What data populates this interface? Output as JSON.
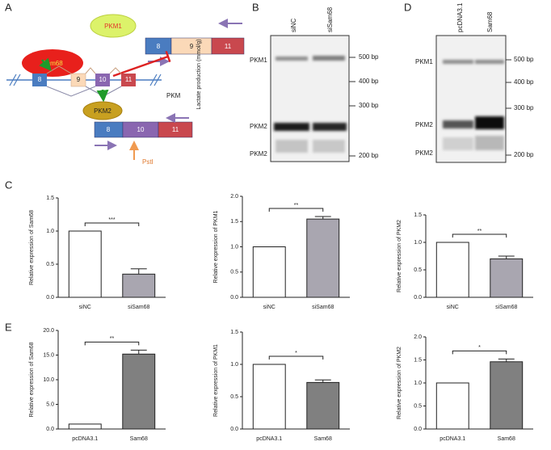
{
  "diagram": {
    "label": "A",
    "proteins": [
      "Sam68",
      "PKM1",
      "PKM2"
    ],
    "exons_top": [
      "8",
      "9",
      "11"
    ],
    "exons_mid": [
      "8",
      "9",
      "10",
      "11"
    ],
    "exons_bottom": [
      "8",
      "10",
      "11"
    ],
    "gene": "PKM",
    "axis_text": "Lactate production (mmol/g)",
    "site": "PstI"
  },
  "gels": [
    {
      "label": "B",
      "lanes": [
        "siNC",
        "siSam68"
      ],
      "bands": [
        "PKM1",
        "PKM2",
        "PKM2"
      ],
      "markers": [
        "500 bp",
        "400 bp",
        "300 bp",
        "200 bp"
      ]
    },
    {
      "label": "D",
      "lanes": [
        "pcDNA3.1",
        "Sam68"
      ],
      "bands": [
        "PKM1",
        "PKM2",
        "PKM2"
      ],
      "markers": [
        "500 bp",
        "400 bp",
        "300 bp",
        "200 bp"
      ]
    }
  ],
  "panel_labels": [
    "C",
    "E"
  ],
  "chart_data": [
    {
      "type": "bar",
      "ylabel": "Relative expression of Sam68",
      "categories": [
        "siNC",
        "siSam68"
      ],
      "values": [
        1.0,
        0.35
      ],
      "errors": [
        null,
        0.08
      ],
      "colors": [
        "#ffffff",
        "#a9a6b0"
      ],
      "annotation": "***",
      "ylim": [
        0,
        1.5
      ],
      "yticks": [
        {
          "value": 0,
          "label": "0.0"
        },
        {
          "value": 0.5,
          "label": "0.5"
        },
        {
          "value": 1,
          "label": "1.0"
        },
        {
          "value": 1.5,
          "label": "1.5"
        }
      ]
    },
    {
      "type": "bar",
      "ylabel": "Relative expression of PKM1",
      "categories": [
        "siNC",
        "siSam68"
      ],
      "values": [
        1.0,
        1.55
      ],
      "errors": [
        null,
        0.05
      ],
      "colors": [
        "#ffffff",
        "#a9a6b0"
      ],
      "annotation": "**",
      "ylim": [
        0,
        2
      ],
      "yticks": [
        {
          "value": 0,
          "label": "0.0"
        },
        {
          "value": 0.5,
          "label": "0.5"
        },
        {
          "value": 1,
          "label": "1.0"
        },
        {
          "value": 1.5,
          "label": "1.5"
        },
        {
          "value": 2,
          "label": "2.0"
        }
      ]
    },
    {
      "type": "bar",
      "ylabel": "Relative expression of PKM2",
      "categories": [
        "siNC",
        "siSam68"
      ],
      "values": [
        1.0,
        0.7
      ],
      "errors": [
        null,
        0.05
      ],
      "colors": [
        "#ffffff",
        "#a9a6b0"
      ],
      "annotation": "**",
      "ylim": [
        0,
        1.5
      ],
      "yticks": [
        {
          "value": 0,
          "label": "0.0"
        },
        {
          "value": 0.5,
          "label": "0.5"
        },
        {
          "value": 1,
          "label": "1.0"
        },
        {
          "value": 1.5,
          "label": "1.5"
        }
      ]
    },
    {
      "type": "bar",
      "ylabel": "Relative expression of Sam68",
      "categories": [
        "pcDNA3.1",
        "Sam68"
      ],
      "values": [
        1.0,
        15.2
      ],
      "errors": [
        null,
        0.8
      ],
      "colors": [
        "#ffffff",
        "#808080"
      ],
      "annotation": "**",
      "ylim": [
        0,
        20
      ],
      "yticks": [
        {
          "value": 0,
          "label": "0.0"
        },
        {
          "value": 5,
          "label": "5.0"
        },
        {
          "value": 10,
          "label": "10.0"
        },
        {
          "value": 15,
          "label": "15.0"
        },
        {
          "value": 20,
          "label": "20.0"
        }
      ]
    },
    {
      "type": "bar",
      "ylabel": "Relative expression of PKM1",
      "categories": [
        "pcDNA3.1",
        "Sam68"
      ],
      "values": [
        1.0,
        0.72
      ],
      "errors": [
        null,
        0.04
      ],
      "colors": [
        "#ffffff",
        "#808080"
      ],
      "annotation": "*",
      "ylim": [
        0,
        1.5
      ],
      "yticks": [
        {
          "value": 0,
          "label": "0.0"
        },
        {
          "value": 0.5,
          "label": "0.5"
        },
        {
          "value": 1,
          "label": "1.0"
        },
        {
          "value": 1.5,
          "label": "1.5"
        }
      ]
    },
    {
      "type": "bar",
      "ylabel": "Relative expression of PKM2",
      "categories": [
        "pcDNA3.1",
        "Sam68"
      ],
      "values": [
        1.0,
        1.46
      ],
      "errors": [
        null,
        0.06
      ],
      "colors": [
        "#ffffff",
        "#808080"
      ],
      "annotation": "*",
      "ylim": [
        0,
        2
      ],
      "yticks": [
        {
          "value": 0,
          "label": "0.0"
        },
        {
          "value": 0.5,
          "label": "0.5"
        },
        {
          "value": 1,
          "label": "1.0"
        },
        {
          "value": 1.5,
          "label": "1.5"
        },
        {
          "value": 2,
          "label": "2.0"
        }
      ]
    }
  ]
}
